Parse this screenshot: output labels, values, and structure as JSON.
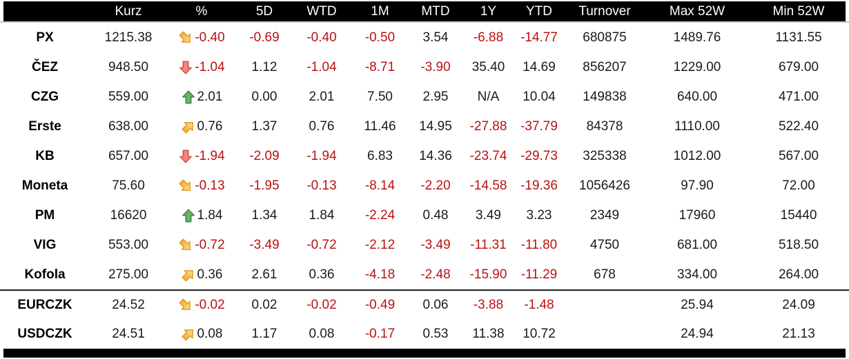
{
  "chart_data": {
    "type": "table",
    "columns": [
      "",
      "Kurz",
      "%",
      "5D",
      "WTD",
      "1M",
      "MTD",
      "1Y",
      "YTD",
      "Turnover",
      "Max 52W",
      "Min 52W"
    ],
    "rows": [
      {
        "name": "PX",
        "kurz": "1215.38",
        "arrow": "se",
        "pct": "-0.40",
        "d5": "-0.69",
        "wtd": "-0.40",
        "m1": "-0.50",
        "mtd": "3.54",
        "y1": "-6.88",
        "ytd": "-14.77",
        "turnover": "680875",
        "max52w": "1489.76",
        "min52w": "1131.55",
        "rule_above": false
      },
      {
        "name": "ČEZ",
        "kurz": "948.50",
        "arrow": "down",
        "pct": "-1.04",
        "d5": "1.12",
        "wtd": "-1.04",
        "m1": "-8.71",
        "mtd": "-3.90",
        "y1": "35.40",
        "ytd": "14.69",
        "turnover": "856207",
        "max52w": "1229.00",
        "min52w": "679.00",
        "rule_above": false
      },
      {
        "name": "CZG",
        "kurz": "559.00",
        "arrow": "up",
        "pct": "2.01",
        "d5": "0.00",
        "wtd": "2.01",
        "m1": "7.50",
        "mtd": "2.95",
        "y1": "N/A",
        "ytd": "10.04",
        "turnover": "149838",
        "max52w": "640.00",
        "min52w": "471.00",
        "rule_above": false
      },
      {
        "name": "Erste",
        "kurz": "638.00",
        "arrow": "ne",
        "pct": "0.76",
        "d5": "1.37",
        "wtd": "0.76",
        "m1": "11.46",
        "mtd": "14.95",
        "y1": "-27.88",
        "ytd": "-37.79",
        "turnover": "84378",
        "max52w": "1110.00",
        "min52w": "522.40",
        "rule_above": false
      },
      {
        "name": "KB",
        "kurz": "657.00",
        "arrow": "down",
        "pct": "-1.94",
        "d5": "-2.09",
        "wtd": "-1.94",
        "m1": "6.83",
        "mtd": "14.36",
        "y1": "-23.74",
        "ytd": "-29.73",
        "turnover": "325338",
        "max52w": "1012.00",
        "min52w": "567.00",
        "rule_above": false
      },
      {
        "name": "Moneta",
        "kurz": "75.60",
        "arrow": "se",
        "pct": "-0.13",
        "d5": "-1.95",
        "wtd": "-0.13",
        "m1": "-8.14",
        "mtd": "-2.20",
        "y1": "-14.58",
        "ytd": "-19.36",
        "turnover": "1056426",
        "max52w": "97.90",
        "min52w": "72.00",
        "rule_above": false
      },
      {
        "name": "PM",
        "kurz": "16620",
        "arrow": "up",
        "pct": "1.84",
        "d5": "1.34",
        "wtd": "1.84",
        "m1": "-2.24",
        "mtd": "0.48",
        "y1": "3.49",
        "ytd": "3.23",
        "turnover": "2349",
        "max52w": "17960",
        "min52w": "15440",
        "rule_above": false
      },
      {
        "name": "VIG",
        "kurz": "553.00",
        "arrow": "se",
        "pct": "-0.72",
        "d5": "-3.49",
        "wtd": "-0.72",
        "m1": "-2.12",
        "mtd": "-3.49",
        "y1": "-11.31",
        "ytd": "-11.80",
        "turnover": "4750",
        "max52w": "681.00",
        "min52w": "518.50",
        "rule_above": false
      },
      {
        "name": "Kofola",
        "kurz": "275.00",
        "arrow": "ne",
        "pct": "0.36",
        "d5": "2.61",
        "wtd": "0.36",
        "m1": "-4.18",
        "mtd": "-2.48",
        "y1": "-15.90",
        "ytd": "-11.29",
        "turnover": "678",
        "max52w": "334.00",
        "min52w": "264.00",
        "rule_above": false
      },
      {
        "name": "EURCZK",
        "kurz": "24.52",
        "arrow": "se",
        "pct": "-0.02",
        "d5": "0.02",
        "wtd": "-0.02",
        "m1": "-0.49",
        "mtd": "0.06",
        "y1": "-3.88",
        "ytd": "-1.48",
        "turnover": "",
        "max52w": "25.94",
        "min52w": "24.09",
        "rule_above": true
      },
      {
        "name": "USDCZK",
        "kurz": "24.51",
        "arrow": "ne",
        "pct": "0.08",
        "d5": "1.17",
        "wtd": "0.08",
        "m1": "-0.17",
        "mtd": "0.53",
        "y1": "11.38",
        "ytd": "10.72",
        "turnover": "",
        "max52w": "24.94",
        "min52w": "21.13",
        "rule_above": false
      }
    ],
    "layout_hints": {
      "header_style": "white-on-black bar",
      "negative_values_colored": true,
      "arrow_legend": {
        "up": "green straight up arrow (gain >= 1%)",
        "ne": "yellow diagonal up-right arrow (small gain)",
        "se": "yellow diagonal down-right arrow (small loss)",
        "down": "red straight down arrow (loss >= 1%)"
      }
    }
  },
  "colors": {
    "header_bg": "#000000",
    "header_text": "#ffffff",
    "positive_text": "#1a1a1a",
    "negative_text": "#b91111",
    "arrow_green_fill": "#66b36a",
    "arrow_green_stroke": "#3a7f3f",
    "arrow_red_fill": "#f2857c",
    "arrow_red_stroke": "#cc4a40",
    "arrow_yellow_light": "#fde289",
    "arrow_yellow_dark": "#f3a93c",
    "arrow_yellow_stroke": "#e0991f"
  }
}
